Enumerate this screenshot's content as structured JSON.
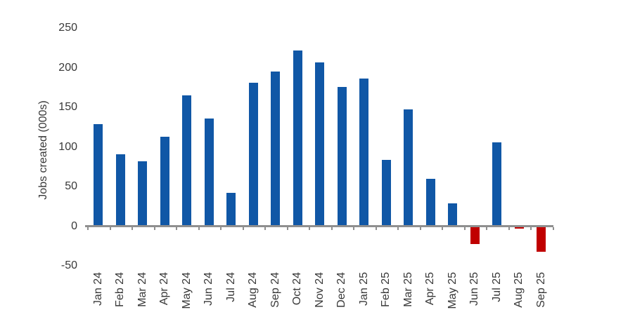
{
  "chart_data": {
    "type": "bar",
    "title": "",
    "xlabel": "",
    "ylabel": "Jobs created (000s)",
    "categories": [
      "Jan 24",
      "Feb 24",
      "Mar 24",
      "Apr 24",
      "May 24",
      "Jun 24",
      "Jul 24",
      "Aug 24",
      "Sep 24",
      "Oct 24",
      "Nov 24",
      "Dec 24",
      "Jan 25",
      "Feb 25",
      "Mar 25",
      "Apr 25",
      "May 25",
      "Jun 25",
      "Jul 25",
      "Aug 25",
      "Sep 25"
    ],
    "values": [
      129,
      91,
      82,
      113,
      165,
      136,
      42,
      181,
      195,
      222,
      207,
      176,
      186,
      84,
      147,
      60,
      29,
      -23,
      106,
      -3,
      -32
    ],
    "ylim": [
      -50,
      250
    ],
    "yticks": [
      250,
      200,
      150,
      100,
      50,
      0,
      -50
    ],
    "grid": false,
    "legend": false,
    "bar_color_positive": "#1057a6",
    "bar_color_negative": "#c00000",
    "axis_color": "#8f8f8f",
    "label_color": "#383838",
    "background": "#ffffff"
  }
}
